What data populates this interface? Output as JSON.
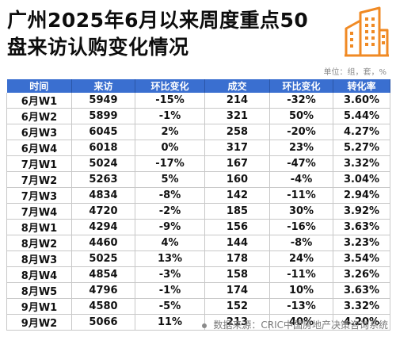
{
  "title_line1": "广州2025年6月以来周度重点50",
  "title_line2": "盘来访认购变化情况",
  "units": "单位：组，套，%",
  "columns": [
    "时间",
    "来访",
    "环比变化",
    "成交",
    "环比变化",
    "转化率"
  ],
  "rows": [
    {
      "time": "6月W1",
      "visits": "5949",
      "visits_change": "-15%",
      "visits_dir": "down",
      "deals": "214",
      "deals_change": "-32%",
      "deals_dir": "down",
      "rate": "3.60%"
    },
    {
      "time": "6月W2",
      "visits": "5899",
      "visits_change": "-1%",
      "visits_dir": "down",
      "deals": "321",
      "deals_change": "50%",
      "deals_dir": "up",
      "rate": "5.44%"
    },
    {
      "time": "6月W3",
      "visits": "6045",
      "visits_change": "2%",
      "visits_dir": "up",
      "deals": "258",
      "deals_change": "-20%",
      "deals_dir": "down",
      "rate": "4.27%"
    },
    {
      "time": "6月W4",
      "visits": "6018",
      "visits_change": "0%",
      "visits_dir": "flat",
      "deals": "317",
      "deals_change": "23%",
      "deals_dir": "up",
      "rate": "5.27%"
    },
    {
      "time": "7月W1",
      "visits": "5024",
      "visits_change": "-17%",
      "visits_dir": "down",
      "deals": "167",
      "deals_change": "-47%",
      "deals_dir": "down",
      "rate": "3.32%"
    },
    {
      "time": "7月W2",
      "visits": "5263",
      "visits_change": "5%",
      "visits_dir": "up",
      "deals": "160",
      "deals_change": "-4%",
      "deals_dir": "down",
      "rate": "3.04%"
    },
    {
      "time": "7月W3",
      "visits": "4834",
      "visits_change": "-8%",
      "visits_dir": "down",
      "deals": "142",
      "deals_change": "-11%",
      "deals_dir": "down",
      "rate": "2.94%"
    },
    {
      "time": "7月W4",
      "visits": "4720",
      "visits_change": "-2%",
      "visits_dir": "down",
      "deals": "185",
      "deals_change": "30%",
      "deals_dir": "up",
      "rate": "3.92%"
    },
    {
      "time": "8月W1",
      "visits": "4294",
      "visits_change": "-9%",
      "visits_dir": "down",
      "deals": "156",
      "deals_change": "-16%",
      "deals_dir": "down",
      "rate": "3.63%"
    },
    {
      "time": "8月W2",
      "visits": "4460",
      "visits_change": "4%",
      "visits_dir": "up",
      "deals": "144",
      "deals_change": "-8%",
      "deals_dir": "down",
      "rate": "3.23%"
    },
    {
      "time": "8月W3",
      "visits": "5025",
      "visits_change": "13%",
      "visits_dir": "up",
      "deals": "178",
      "deals_change": "24%",
      "deals_dir": "up",
      "rate": "3.54%"
    },
    {
      "time": "8月W4",
      "visits": "4854",
      "visits_change": "-3%",
      "visits_dir": "down",
      "deals": "158",
      "deals_change": "-11%",
      "deals_dir": "down",
      "rate": "3.26%"
    },
    {
      "time": "8月W5",
      "visits": "4796",
      "visits_change": "-1%",
      "visits_dir": "down",
      "deals": "174",
      "deals_change": "10%",
      "deals_dir": "up",
      "rate": "3.63%"
    },
    {
      "time": "9月W1",
      "visits": "4580",
      "visits_change": "-5%",
      "visits_dir": "down",
      "deals": "152",
      "deals_change": "-13%",
      "deals_dir": "down",
      "rate": "3.32%"
    },
    {
      "time": "9月W2",
      "visits": "5066",
      "visits_change": "11%",
      "visits_dir": "up",
      "deals": "213",
      "deals_change": "40%",
      "deals_dir": "up",
      "rate": "4.20%"
    }
  ],
  "footer": "数据来源：CRIC中国房地产决策咨询系统",
  "colors": {
    "header_bg": "#3a6fd0",
    "up": "#d91e1e",
    "down": "#25a04a",
    "logo": "#f08a24"
  },
  "icons": {
    "logo": "building-icon",
    "footer_bullet": "dot-icon"
  }
}
